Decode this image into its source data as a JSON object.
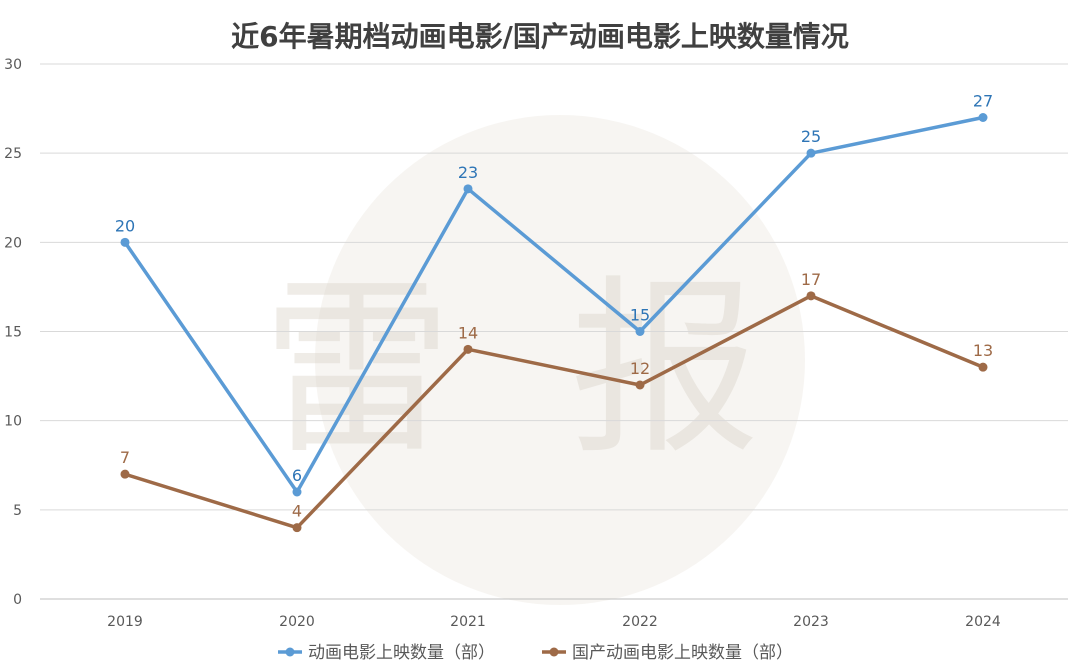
{
  "chart_data": {
    "type": "line",
    "title": "近6年暑期档动画电影/国产动画电影上映数量情况",
    "categories": [
      "2019",
      "2020",
      "2021",
      "2022",
      "2023",
      "2024"
    ],
    "ylim": [
      0,
      30
    ],
    "yticks": [
      "0",
      "5",
      "10",
      "15",
      "20",
      "25",
      "30"
    ],
    "grid": true,
    "legend": "bottom",
    "series": [
      {
        "name": "动画电影上映数量（部）",
        "values": [
          20,
          6,
          23,
          15,
          25,
          27
        ],
        "color": "#5b9bd5",
        "label_color": "#2e75b6"
      },
      {
        "name": "国产动画电影上映数量（部）",
        "values": [
          7,
          4,
          14,
          12,
          17,
          13
        ],
        "color": "#9e6a47",
        "label_color": "#9e6a47"
      }
    ]
  },
  "watermark": {
    "char1": "雷",
    "char2": "报"
  }
}
